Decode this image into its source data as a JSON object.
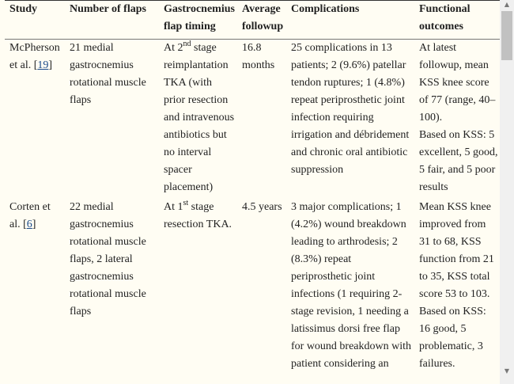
{
  "headers": [
    "Study",
    "Number of flaps",
    "Gastrocnemius\nflap timing",
    "Average\nfollowup",
    "Complications",
    "Functional\noutcomes"
  ],
  "rows": [
    {
      "study": "McPherson\net al. ",
      "ref": "19",
      "flaps": "21 medial\ngastrocnemius\nrotational muscle\nflaps",
      "timing_pre": "At 2",
      "timing_sup": "nd",
      "timing_post": " stage\nreimplantation\nTKA (with\nprior resection\nand intravenous\nantibiotics but\nno interval\nspacer\nplacement)",
      "followup": "16.8\nmonths",
      "complications": "25 complications in 13\npatients; 2 (9.6%) patellar\ntendon ruptures; 1 (4.8%)\nrepeat periprosthetic joint\ninfection requiring\nirrigation and débridement\nand chronic oral antibiotic\nsuppression",
      "outcomes": "At latest\nfollowup, mean\nKSS knee score\nof 77 (range, 40–\n100).\nBased on KSS: 5\nexcellent, 5 good,\n5 fair, and 5 poor\nresults"
    },
    {
      "study": "Corten et\nal. ",
      "ref": "6",
      "flaps": "22 medial\ngastrocnemius\nrotational muscle\nflaps, 2 lateral\ngastrocnemius\nrotational muscle\nflaps",
      "timing_pre": "At 1",
      "timing_sup": "st",
      "timing_post": " stage\nresection TKA.",
      "followup": "4.5 years",
      "complications": "3 major complications; 1\n(4.2%) wound breakdown\nleading to arthrodesis; 2\n(8.3%) repeat\nperiprosthetic joint\ninfections (1 requiring 2-\nstage revision, 1 needing a\nlatissimus dorsi free flap\nfor wound breakdown with\npatient considering an",
      "outcomes": "Mean KSS knee\nimproved from\n31 to 68, KSS\nfunction from 21\nto 35, KSS total\nscore 53 to 103.\nBased on KSS:\n16 good, 5\nproblematic, 3\nfailures."
    }
  ]
}
